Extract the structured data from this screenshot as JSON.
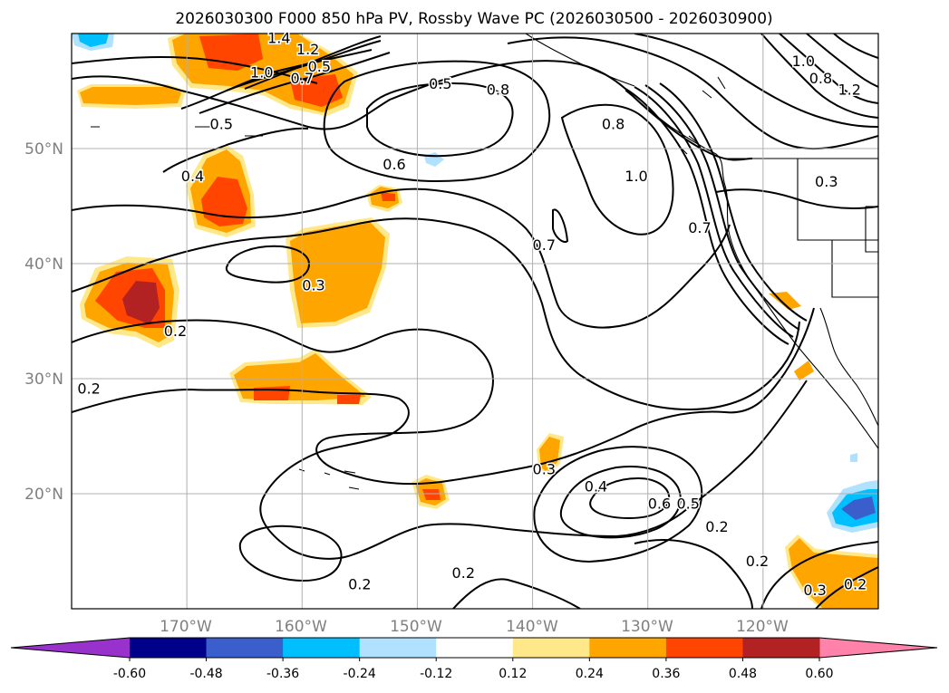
{
  "chart_data": {
    "type": "contour map",
    "title": "2026030300 F000 850 hPa PV, Rossby Wave PC (2026030500 - 2026030900)",
    "x_axis": {
      "ticks": [
        {
          "value": -170,
          "label": "170°W"
        },
        {
          "value": -160,
          "label": "160°W"
        },
        {
          "value": -150,
          "label": "150°W"
        },
        {
          "value": -140,
          "label": "140°W"
        },
        {
          "value": -130,
          "label": "130°W"
        },
        {
          "value": -120,
          "label": "120°W"
        }
      ],
      "range": [
        -180,
        -110
      ]
    },
    "y_axis": {
      "ticks": [
        {
          "value": 20,
          "label": "20°N"
        },
        {
          "value": 30,
          "label": "30°N"
        },
        {
          "value": 40,
          "label": "40°N"
        },
        {
          "value": 50,
          "label": "50°N"
        }
      ],
      "range": [
        10,
        60
      ]
    },
    "grid": true,
    "colorbar": {
      "levels": [
        "-0.60",
        "-0.48",
        "-0.36",
        "-0.24",
        "-0.12",
        "0.12",
        "0.24",
        "0.36",
        "0.48",
        "0.60"
      ],
      "colors": [
        "#9932cc",
        "#00008b",
        "#3a5fcd",
        "#00bfff",
        "#b0e2ff",
        "#ffffff",
        "#ffe88a",
        "#ffa500",
        "#ff4500",
        "#b22222",
        "#ff82ab"
      ],
      "extend": "both"
    },
    "shaded_regions": [
      {
        "lon": -176,
        "lat": 37,
        "value": 0.5
      },
      {
        "lon": -166,
        "lat": 45,
        "value": 0.4
      },
      {
        "lon": -163,
        "lat": 28.5,
        "value": 0.4
      },
      {
        "lon": -155,
        "lat": 36,
        "value": 0.3
      },
      {
        "lon": -164,
        "lat": 57,
        "value": 0.4
      },
      {
        "lon": -173,
        "lat": 55,
        "value": 0.3
      },
      {
        "lon": -149,
        "lat": 20,
        "value": 0.36
      },
      {
        "lon": -141,
        "lat": 23,
        "value": 0.3
      },
      {
        "lon": -153,
        "lat": 45.5,
        "value": 0.36
      },
      {
        "lon": -178,
        "lat": 59,
        "value": -0.3
      },
      {
        "lon": -112,
        "lat": 19,
        "value": -0.4
      },
      {
        "lon": -113,
        "lat": 13,
        "value": 0.3
      },
      {
        "lon": -148,
        "lat": 50,
        "value": -0.2
      }
    ],
    "contour_labels": [
      {
        "text": "0.5",
        "lon": -148,
        "lat": 55.5
      },
      {
        "text": "0.8",
        "lon": -143,
        "lat": 55
      },
      {
        "text": "0.6",
        "lon": -152,
        "lat": 48.5
      },
      {
        "text": "0.5",
        "lon": -167,
        "lat": 52
      },
      {
        "text": "0.4",
        "lon": -169.5,
        "lat": 47.5
      },
      {
        "text": "0.3",
        "lon": -159,
        "lat": 38
      },
      {
        "text": "0.2",
        "lon": -171,
        "lat": 34
      },
      {
        "text": "0.2",
        "lon": -178.5,
        "lat": 29
      },
      {
        "text": "0.7",
        "lon": -139,
        "lat": 41.5
      },
      {
        "text": "0.8",
        "lon": -133,
        "lat": 52
      },
      {
        "text": "1.0",
        "lon": -131,
        "lat": 47.5
      },
      {
        "text": "0.7",
        "lon": -125.5,
        "lat": 43
      },
      {
        "text": "0.3",
        "lon": -139,
        "lat": 22
      },
      {
        "text": "0.4",
        "lon": -134.5,
        "lat": 20.5
      },
      {
        "text": "0.6",
        "lon": -129,
        "lat": 19
      },
      {
        "text": "0.5",
        "lon": -126.5,
        "lat": 19
      },
      {
        "text": "0.2",
        "lon": -124,
        "lat": 17
      },
      {
        "text": "0.2",
        "lon": -120.5,
        "lat": 14
      },
      {
        "text": "0.2",
        "lon": -146,
        "lat": 13
      },
      {
        "text": "0.2",
        "lon": -155,
        "lat": 12
      },
      {
        "text": "0.3",
        "lon": -115.5,
        "lat": 11.5
      },
      {
        "text": "0.2",
        "lon": -112,
        "lat": 12
      },
      {
        "text": "1.0",
        "lon": -116.5,
        "lat": 57.5
      },
      {
        "text": "0.8",
        "lon": -115,
        "lat": 56
      },
      {
        "text": "1.2",
        "lon": -112.5,
        "lat": 55
      },
      {
        "text": "0.3",
        "lon": -114.5,
        "lat": 47
      },
      {
        "text": "1.0",
        "lon": -163.5,
        "lat": 56.5
      },
      {
        "text": "0.7",
        "lon": -160,
        "lat": 56
      },
      {
        "text": "1.4",
        "lon": -162,
        "lat": 59.5
      },
      {
        "text": "1.2",
        "lon": -159.5,
        "lat": 58.5
      },
      {
        "text": "0.5",
        "lon": -158.5,
        "lat": 57
      }
    ]
  }
}
